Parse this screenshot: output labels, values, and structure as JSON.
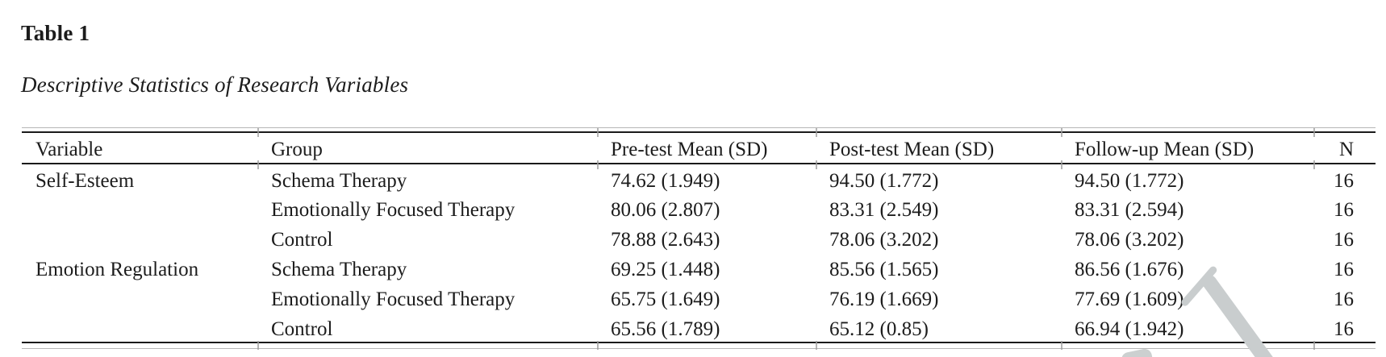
{
  "page": {
    "title": "Table 1",
    "subtitle": "Descriptive Statistics of Research Variables"
  },
  "table": {
    "columns": [
      "Variable",
      "Group",
      "Pre-test Mean (SD)",
      "Post-test Mean (SD)",
      "Follow-up Mean (SD)",
      "N"
    ],
    "rows": [
      [
        "Self-Esteem",
        "Schema Therapy",
        "74.62 (1.949)",
        "94.50 (1.772)",
        "94.50 (1.772)",
        "16"
      ],
      [
        "",
        "Emotionally Focused Therapy",
        "80.06 (2.807)",
        "83.31 (2.549)",
        "83.31 (2.594)",
        "16"
      ],
      [
        "",
        "Control",
        "78.88 (2.643)",
        "78.06 (3.202)",
        "78.06 (3.202)",
        "16"
      ],
      [
        "Emotion Regulation",
        "Schema Therapy",
        "69.25 (1.448)",
        "85.56 (1.565)",
        "86.56 (1.676)",
        "16"
      ],
      [
        "",
        "Emotionally Focused Therapy",
        "65.75 (1.649)",
        "76.19 (1.669)",
        "77.69 (1.609)",
        "16"
      ],
      [
        "",
        "Control",
        "65.56 (1.789)",
        "65.12 (0.85)",
        "66.94 (1.942)",
        "16"
      ]
    ]
  }
}
